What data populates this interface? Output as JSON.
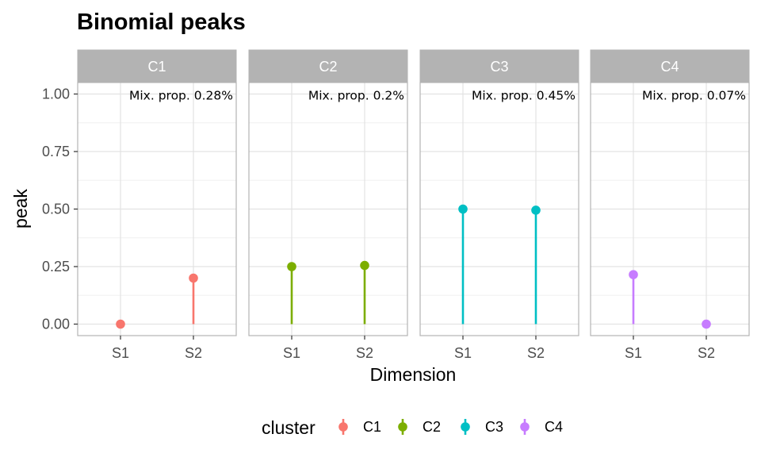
{
  "chart_data": {
    "type": "lollipop",
    "title": "Binomial peaks",
    "xlabel": "Dimension",
    "ylabel": "peak",
    "ylim": [
      -0.05,
      1.05
    ],
    "yticks": [
      0.0,
      0.25,
      0.5,
      0.75,
      1.0
    ],
    "ytick_labels": [
      "0.00",
      "0.25",
      "0.50",
      "0.75",
      "1.00"
    ],
    "categories": [
      "S1",
      "S2"
    ],
    "grid": true,
    "panels": [
      {
        "name": "C1",
        "color": "#F8766D",
        "values": [
          0.0,
          0.2
        ],
        "annotation": "Mix. prop. 0.28%"
      },
      {
        "name": "C2",
        "color": "#7CAE00",
        "values": [
          0.25,
          0.255
        ],
        "annotation": "Mix. prop. 0.2%"
      },
      {
        "name": "C3",
        "color": "#00BFC4",
        "values": [
          0.5,
          0.495
        ],
        "annotation": "Mix. prop. 0.45%"
      },
      {
        "name": "C4",
        "color": "#C77CFF",
        "values": [
          0.215,
          0.0
        ],
        "annotation": "Mix. prop. 0.07%"
      }
    ],
    "legend": {
      "title": "cluster",
      "position": "bottom",
      "entries": [
        "C1",
        "C2",
        "C3",
        "C4"
      ]
    }
  }
}
